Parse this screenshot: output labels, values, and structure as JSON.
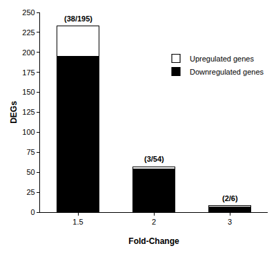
{
  "chart_data": {
    "type": "bar",
    "stacked": true,
    "x_label": "Fold-Change",
    "y_label": "DEGs",
    "categories": [
      "1.5",
      "2",
      "3"
    ],
    "series": [
      {
        "name": "Downregulated genes",
        "color": "#000000",
        "values": [
          195,
          54,
          6
        ]
      },
      {
        "name": "Upregulated genes",
        "color": "#ffffff",
        "values": [
          38,
          3,
          2
        ]
      }
    ],
    "annotations": [
      "(38/195)",
      "(3/54)",
      "(2/6)"
    ],
    "ylim": [
      0,
      250
    ],
    "yticks": [
      0,
      25,
      50,
      75,
      100,
      125,
      150,
      175,
      200,
      225,
      250
    ],
    "grid": false,
    "legend": "upper right"
  }
}
